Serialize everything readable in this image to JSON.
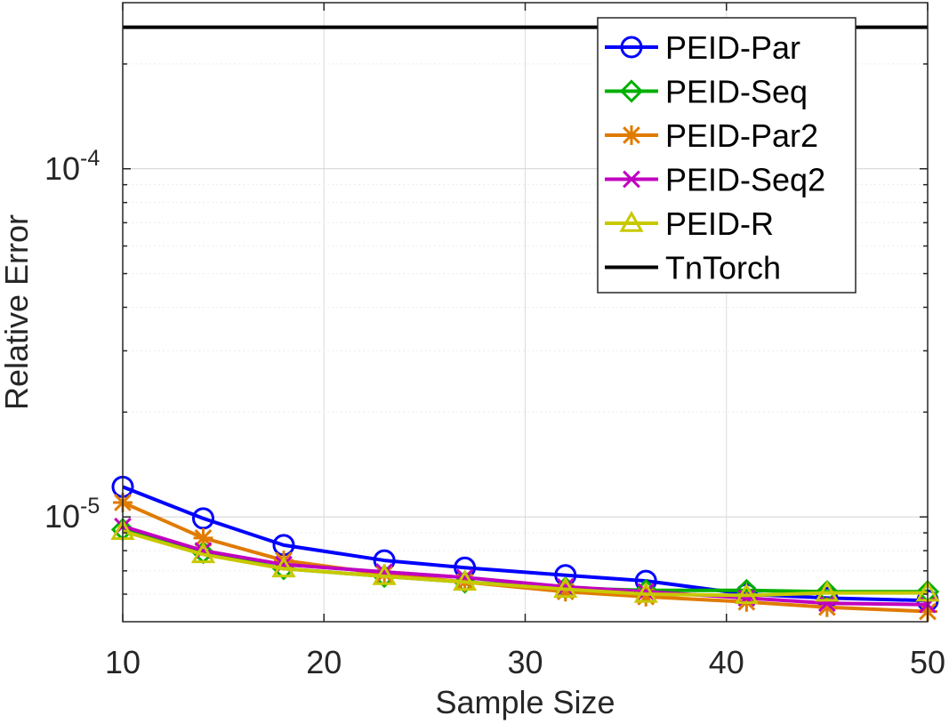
{
  "chart_data": {
    "type": "line",
    "title": "",
    "xlabel": "Sample Size",
    "ylabel": "Relative Error",
    "yscale": "log",
    "xlim": [
      10,
      50
    ],
    "ylim": [
      5e-06,
      0.0003
    ],
    "grid": true,
    "legend_position": "top-right",
    "x_ticks": [
      10,
      20,
      30,
      40,
      50
    ],
    "x_tick_labels": [
      "10",
      "20",
      "30",
      "40",
      "50"
    ],
    "y_ticks": [
      {
        "value": 1e-05,
        "base": "10",
        "exp": "-5"
      },
      {
        "value": 0.0001,
        "base": "10",
        "exp": "-4"
      }
    ],
    "x": [
      10,
      14,
      18,
      23,
      27,
      32,
      36,
      41,
      45,
      50
    ],
    "series": [
      {
        "name": "PEID-Par",
        "color": "#0000ff",
        "marker": "circle",
        "values": [
          1.22e-05,
          9.9e-06,
          8.3e-06,
          7.5e-06,
          7.15e-06,
          6.8e-06,
          6.55e-06,
          6e-06,
          5.85e-06,
          5.75e-06
        ]
      },
      {
        "name": "PEID-Seq",
        "color": "#00b000",
        "marker": "diamond",
        "values": [
          9.2e-06,
          7.9e-06,
          7.1e-06,
          6.75e-06,
          6.5e-06,
          6.25e-06,
          6.15e-06,
          6.15e-06,
          6.1e-06,
          6.1e-06
        ]
      },
      {
        "name": "PEID-Par2",
        "color": "#e07b00",
        "marker": "asterisk",
        "values": [
          1.1e-05,
          8.7e-06,
          7.5e-06,
          6.85e-06,
          6.5e-06,
          6.1e-06,
          5.9e-06,
          5.7e-06,
          5.5e-06,
          5.35e-06
        ]
      },
      {
        "name": "PEID-Seq2",
        "color": "#c000c0",
        "marker": "cross",
        "values": [
          9.4e-06,
          8e-06,
          7.3e-06,
          6.95e-06,
          6.7e-06,
          6.3e-06,
          6.1e-06,
          5.85e-06,
          5.65e-06,
          5.6e-06
        ]
      },
      {
        "name": "PEID-R",
        "color": "#c8c800",
        "marker": "triangle",
        "values": [
          9.1e-06,
          7.8e-06,
          7.1e-06,
          6.75e-06,
          6.5e-06,
          6.2e-06,
          6e-06,
          5.95e-06,
          6.05e-06,
          6.05e-06
        ]
      },
      {
        "name": "TnTorch",
        "color": "#000000",
        "marker": "none",
        "values": [
          0.000255,
          0.000255,
          0.000255,
          0.000255,
          0.000255,
          0.000255,
          0.000255,
          0.000255,
          0.000255,
          0.000255
        ]
      }
    ]
  }
}
